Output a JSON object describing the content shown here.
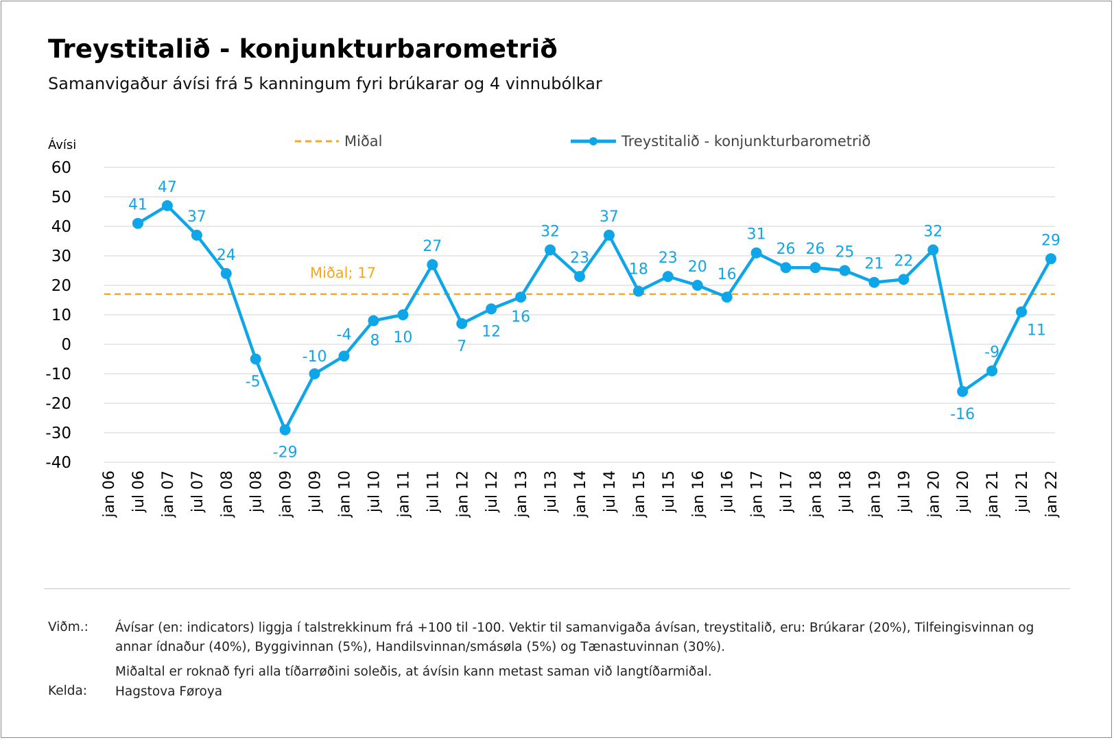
{
  "title": "Treystitalið - konjunkturbarometrið",
  "subtitle": "Samanvigaður ávísi frá 5 kanningum fyri brúkarar og 4 vinnubólkar",
  "notes": {
    "label1": "Viðm.:",
    "text1a": "Ávísar (en: indicators) liggja í talstrekkinum frá +100 til -100. Vektir til samanvigaða ávísan, treystitalið, eru: Brúkarar (20%), Tilfeingisvinnan og annar ídnaður (40%), Byggivinnan (5%), Handilsvinnan/smásøla (5%) og Tænastuvinnan (30%).",
    "text1b": "Miðaltal er roknað fyri alla tíðarrøðini soleðis, at ávísin kann metast saman við langtíðarmiðal.",
    "label2": "Kelda:",
    "text2": "Hagstova Føroya"
  },
  "colors": {
    "series": "#0ea5e9",
    "mean": "#f5a623",
    "grid": "#d9d9d9",
    "axis_text": "#000000"
  },
  "chart_data": {
    "type": "line",
    "ylabel": "Ávísi",
    "ylim": [
      -40,
      60
    ],
    "yticks": [
      "60",
      "50",
      "40",
      "30",
      "20",
      "10",
      "0",
      "-10",
      "-20",
      "-30",
      "-40"
    ],
    "ytick_values": [
      60,
      50,
      40,
      30,
      20,
      10,
      0,
      -10,
      -20,
      -30,
      -40
    ],
    "categories": [
      "jan 06",
      "jul 06",
      "jan 07",
      "jul 07",
      "jan 08",
      "jul 08",
      "jan 09",
      "jul 09",
      "jan 10",
      "jul 10",
      "jan 11",
      "jul 11",
      "jan 12",
      "jul 12",
      "jan 13",
      "jul 13",
      "jan 14",
      "jul 14",
      "jan 15",
      "jul 15",
      "jan 16",
      "jul 16",
      "jan 17",
      "jul 17",
      "jan 18",
      "jul 18",
      "jan 19",
      "jul 19",
      "jan 20",
      "jul 20",
      "jan 21",
      "jul 21",
      "jan 22"
    ],
    "grid": true,
    "legend_position": "top",
    "series": [
      {
        "name": "Treystitalið - konjunkturbarometrið",
        "points": [
          {
            "x": "jul 06",
            "y": 41,
            "label": "41"
          },
          {
            "x": "jan 07",
            "y": 47,
            "label": "47"
          },
          {
            "x": "jul 07",
            "y": 37,
            "label": "37"
          },
          {
            "x": "jan 08",
            "y": 24,
            "label": "24"
          },
          {
            "x": "jul 08",
            "y": -5,
            "label": "-5"
          },
          {
            "x": "jan 09",
            "y": -29,
            "label": "-29"
          },
          {
            "x": "jul 09",
            "y": -10,
            "label": "-10"
          },
          {
            "x": "jan 10",
            "y": -4,
            "label": "-4"
          },
          {
            "x": "jul 10",
            "y": 8,
            "label": "8"
          },
          {
            "x": "jan 11",
            "y": 10,
            "label": "10"
          },
          {
            "x": "jul 11",
            "y": 27,
            "label": "27"
          },
          {
            "x": "jan 12",
            "y": 7,
            "label": "7"
          },
          {
            "x": "jul 12",
            "y": 12,
            "label": "12"
          },
          {
            "x": "jan 13",
            "y": 16,
            "label": "16"
          },
          {
            "x": "jul 13",
            "y": 32,
            "label": "32"
          },
          {
            "x": "jan 14",
            "y": 23,
            "label": "23"
          },
          {
            "x": "jul 14",
            "y": 37,
            "label": "37"
          },
          {
            "x": "jan 15",
            "y": 18,
            "label": "18"
          },
          {
            "x": "jul 15",
            "y": 23,
            "label": "23"
          },
          {
            "x": "jan 16",
            "y": 20,
            "label": "20"
          },
          {
            "x": "jul 16",
            "y": 16,
            "label": "16"
          },
          {
            "x": "jan 17",
            "y": 31,
            "label": "31"
          },
          {
            "x": "jul 17",
            "y": 26,
            "label": "26"
          },
          {
            "x": "jan 18",
            "y": 26,
            "label": "26"
          },
          {
            "x": "jul 18",
            "y": 25,
            "label": "25"
          },
          {
            "x": "jan 19",
            "y": 21,
            "label": "21"
          },
          {
            "x": "jul 19",
            "y": 22,
            "label": "22"
          },
          {
            "x": "jan 20",
            "y": 32,
            "label": "32"
          },
          {
            "x": "jul 20",
            "y": -16,
            "label": "-16"
          },
          {
            "x": "jan 21",
            "y": -9,
            "label": "-9"
          },
          {
            "x": "jul 21",
            "y": 11,
            "label": "11"
          },
          {
            "x": "jan 22",
            "y": 29,
            "label": "29"
          }
        ]
      },
      {
        "name": "Miðal",
        "constant": 17,
        "label": "Miðal; 17"
      }
    ]
  }
}
